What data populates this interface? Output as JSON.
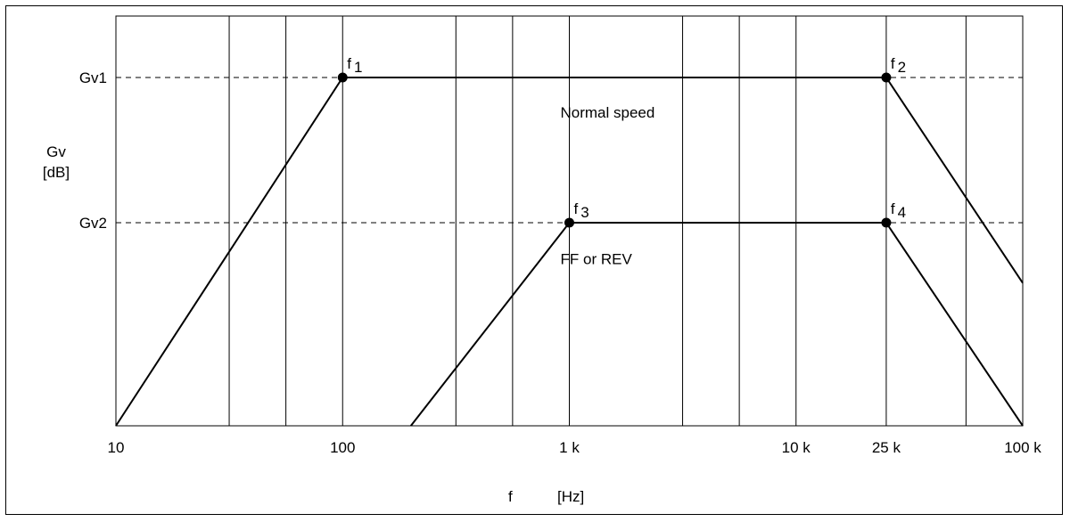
{
  "chart_data": {
    "type": "line",
    "xscale": "log",
    "x_range_hz": [
      10,
      100000
    ],
    "x_ticks": [
      {
        "value": 10,
        "label": "10"
      },
      {
        "value": 100,
        "label": "100"
      },
      {
        "value": 1000,
        "label": "1 k"
      },
      {
        "value": 10000,
        "label": "10 k"
      },
      {
        "value": 25000,
        "label": "25 k"
      },
      {
        "value": 100000,
        "label": "100 k"
      }
    ],
    "minor_gridlines_hz": [
      31.6,
      56.2,
      316,
      562,
      3160,
      5620,
      56200
    ],
    "xlabel": {
      "symbol": "f",
      "unit": "[Hz]"
    },
    "ylabel": {
      "symbol": "Gv",
      "unit": "[dB]"
    },
    "y_levels": [
      {
        "key": "Gv1",
        "label": "Gv1",
        "rel": 1.0
      },
      {
        "key": "Gv2",
        "label": "Gv2",
        "rel": 0.583
      }
    ],
    "y_bottom_rel": 0,
    "grid": "vertical",
    "series": [
      {
        "name": "Normal speed",
        "label_at": {
          "x": 1000,
          "rel": 0.9
        },
        "points": [
          {
            "x": 10,
            "rel": 0
          },
          {
            "x": 100,
            "rel": 1.0,
            "marker": "f1"
          },
          {
            "x": 25000,
            "rel": 1.0,
            "marker": "f2"
          },
          {
            "x": 100000,
            "rel": 0.41
          }
        ]
      },
      {
        "name": "FF or REV",
        "label_at": {
          "x": 1000,
          "rel": 0.48
        },
        "points": [
          {
            "x": 200,
            "rel": 0
          },
          {
            "x": 1000,
            "rel": 0.583,
            "marker": "f3"
          },
          {
            "x": 25000,
            "rel": 0.583,
            "marker": "f4"
          },
          {
            "x": 100000,
            "rel": 0
          }
        ]
      }
    ],
    "markers": [
      {
        "id": "f1",
        "base": "f",
        "sub": "1"
      },
      {
        "id": "f2",
        "base": "f",
        "sub": "2"
      },
      {
        "id": "f3",
        "base": "f",
        "sub": "3"
      },
      {
        "id": "f4",
        "base": "f",
        "sub": "4"
      }
    ]
  }
}
